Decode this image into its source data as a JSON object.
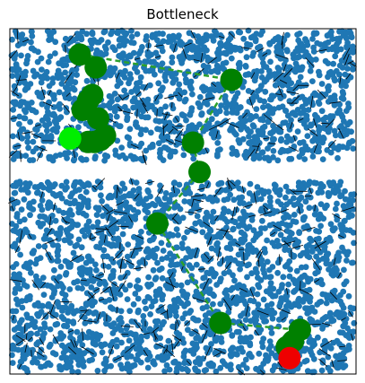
{
  "chart_data": {
    "type": "scatter",
    "title": "Bottleneck",
    "xlabel": "",
    "ylabel": "",
    "xlim": [
      0,
      1
    ],
    "ylim": [
      0,
      1
    ],
    "axes_ticks": false,
    "grid": false,
    "obstacle_color": "#1f77b4",
    "path_color": "#008000",
    "path_line_color": "#2ca02c",
    "start_color": "#00ee00",
    "goal_color": "#ee0000",
    "gap": {
      "y_min": 0.56,
      "y_max": 0.615
    },
    "path_nodes": [
      {
        "x": 0.202,
        "y": 0.925
      },
      {
        "x": 0.248,
        "y": 0.888
      },
      {
        "x": 0.64,
        "y": 0.852
      },
      {
        "x": 0.238,
        "y": 0.808
      },
      {
        "x": 0.226,
        "y": 0.792
      },
      {
        "x": 0.21,
        "y": 0.765
      },
      {
        "x": 0.255,
        "y": 0.74
      },
      {
        "x": 0.275,
        "y": 0.69
      },
      {
        "x": 0.244,
        "y": 0.672
      },
      {
        "x": 0.226,
        "y": 0.672
      },
      {
        "x": 0.262,
        "y": 0.678
      },
      {
        "x": 0.529,
        "y": 0.67
      },
      {
        "x": 0.548,
        "y": 0.585
      },
      {
        "x": 0.426,
        "y": 0.436
      },
      {
        "x": 0.608,
        "y": 0.148
      },
      {
        "x": 0.838,
        "y": 0.128
      },
      {
        "x": 0.818,
        "y": 0.095
      },
      {
        "x": 0.8,
        "y": 0.078
      }
    ],
    "path_edges": [
      {
        "x": [
          0.202,
          0.64
        ],
        "y": [
          0.925,
          0.852
        ]
      },
      {
        "x": [
          0.64,
          0.529
        ],
        "y": [
          0.852,
          0.67
        ]
      },
      {
        "x": [
          0.529,
          0.548
        ],
        "y": [
          0.67,
          0.585
        ]
      },
      {
        "x": [
          0.548,
          0.426
        ],
        "y": [
          0.585,
          0.436
        ]
      },
      {
        "x": [
          0.426,
          0.608
        ],
        "y": [
          0.436,
          0.148
        ]
      },
      {
        "x": [
          0.608,
          0.838
        ],
        "y": [
          0.148,
          0.128
        ]
      }
    ],
    "start": {
      "x": 0.174,
      "y": 0.682
    },
    "goal": {
      "x": 0.808,
      "y": 0.046
    }
  }
}
